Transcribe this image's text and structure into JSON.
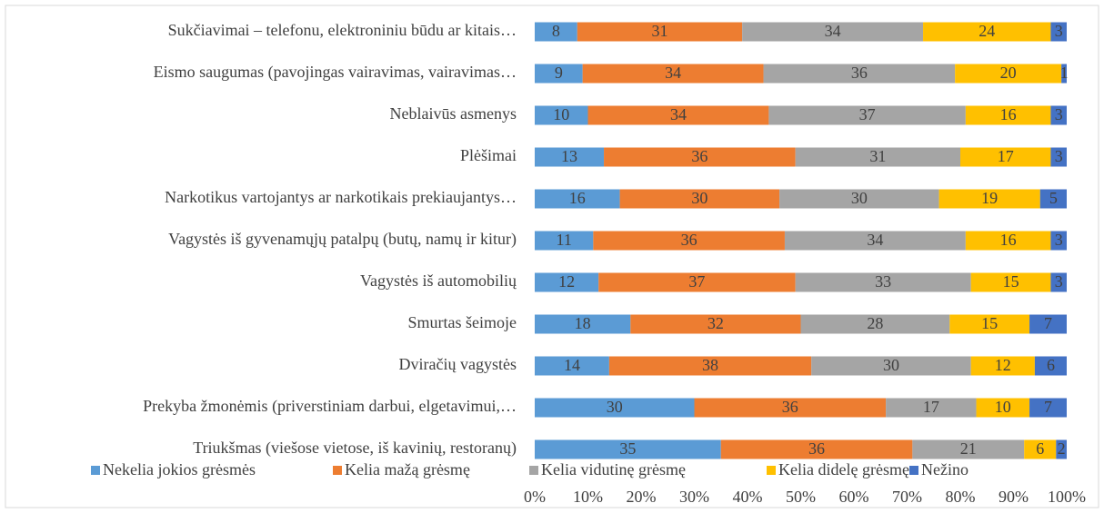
{
  "chart_data": {
    "type": "stacked_bar_horizontal",
    "categories": [
      "Sukčiavimai – telefonu, elektroniniu būdu ar kitais…",
      "Eismo saugumas (pavojingas vairavimas, vairavimas…",
      "Neblaivūs asmenys",
      "Plėšimai",
      "Narkotikus vartojantys ar narkotikais prekiaujantys…",
      "Vagystės iš gyvenamųjų patalpų (butų, namų ir kitur)",
      "Vagystės iš automobilių",
      "Smurtas šeimoje",
      "Dviračių vagystės",
      "Prekyba žmonėmis (priverstiniam darbui, elgetavimui,…",
      "Triukšmas (viešose vietose, iš kavinių, restoranų)"
    ],
    "series": [
      {
        "name": "Nekelia jokios grėsmės",
        "color": "#5b9bd5",
        "values": [
          8,
          9,
          10,
          13,
          16,
          11,
          12,
          18,
          14,
          30,
          35
        ]
      },
      {
        "name": "Kelia mažą grėsmę",
        "color": "#ed7d31",
        "values": [
          31,
          34,
          34,
          36,
          30,
          36,
          37,
          32,
          38,
          36,
          36
        ]
      },
      {
        "name": "Kelia vidutinę grėsmę",
        "color": "#a5a5a5",
        "values": [
          34,
          36,
          37,
          31,
          30,
          34,
          33,
          28,
          30,
          17,
          21
        ]
      },
      {
        "name": "Kelia didelę grėsmę",
        "color": "#ffc000",
        "values": [
          24,
          20,
          16,
          17,
          19,
          16,
          15,
          15,
          12,
          10,
          6
        ]
      },
      {
        "name": "Nežino",
        "color": "#4472c4",
        "values": [
          3,
          1,
          3,
          3,
          5,
          3,
          3,
          7,
          6,
          7,
          2
        ]
      }
    ],
    "xlim": [
      0,
      100
    ],
    "xticks": [
      {
        "value": 0,
        "label": "0%"
      },
      {
        "value": 10,
        "label": "10%"
      },
      {
        "value": 20,
        "label": "20%"
      },
      {
        "value": 30,
        "label": "30%"
      },
      {
        "value": 40,
        "label": "40%"
      },
      {
        "value": 50,
        "label": "50%"
      },
      {
        "value": 60,
        "label": "60%"
      },
      {
        "value": 70,
        "label": "70%"
      },
      {
        "value": 80,
        "label": "80%"
      },
      {
        "value": 90,
        "label": "90%"
      },
      {
        "value": 100,
        "label": "100%"
      }
    ],
    "legend": "bottom"
  }
}
